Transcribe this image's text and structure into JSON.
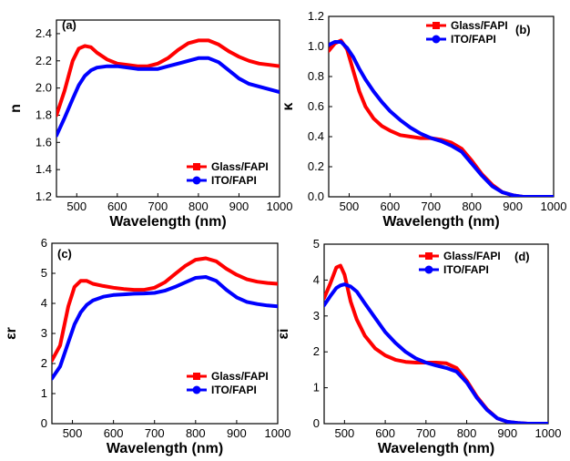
{
  "chart_data": [
    {
      "type": "line",
      "panel_label": "(a)",
      "xlabel": "Wavelength (nm)",
      "ylabel": "n",
      "xlim": [
        450,
        1000
      ],
      "ylim": [
        1.2,
        2.5
      ],
      "xticks": [
        500,
        600,
        700,
        800,
        900,
        1000
      ],
      "yticks": [
        1.2,
        1.4,
        1.6,
        1.8,
        2.0,
        2.2,
        2.4
      ],
      "ytick_labels": [
        "1.2",
        "1.4",
        "1.6",
        "1.8",
        "2.0",
        "2.2",
        "2.4"
      ],
      "legend_position": "bottom-right",
      "x": [
        450,
        470,
        490,
        505,
        520,
        535,
        550,
        575,
        600,
        625,
        650,
        675,
        700,
        725,
        750,
        775,
        800,
        825,
        850,
        875,
        900,
        925,
        950,
        975,
        1000
      ],
      "series": [
        {
          "name": "Glass/FAPI",
          "color": "#ff0000",
          "marker": "square",
          "values": [
            1.8,
            1.98,
            2.2,
            2.29,
            2.31,
            2.3,
            2.26,
            2.21,
            2.18,
            2.17,
            2.16,
            2.16,
            2.18,
            2.22,
            2.28,
            2.33,
            2.35,
            2.35,
            2.32,
            2.27,
            2.23,
            2.2,
            2.18,
            2.17,
            2.16
          ]
        },
        {
          "name": "ITO/FAPI",
          "color": "#0000ff",
          "marker": "circle",
          "values": [
            1.65,
            1.78,
            1.92,
            2.02,
            2.09,
            2.13,
            2.15,
            2.16,
            2.16,
            2.15,
            2.14,
            2.14,
            2.14,
            2.16,
            2.18,
            2.2,
            2.22,
            2.22,
            2.19,
            2.13,
            2.07,
            2.03,
            2.01,
            1.99,
            1.97
          ]
        }
      ]
    },
    {
      "type": "line",
      "panel_label": "(b)",
      "xlabel": "Wavelength (nm)",
      "ylabel": "κ",
      "xlim": [
        450,
        1000
      ],
      "ylim": [
        0.0,
        1.2
      ],
      "xticks": [
        500,
        600,
        700,
        800,
        900,
        1000
      ],
      "yticks": [
        0.0,
        0.2,
        0.4,
        0.6,
        0.8,
        1.0,
        1.2
      ],
      "ytick_labels": [
        "0.0",
        "0.2",
        "0.4",
        "0.6",
        "0.8",
        "1.0",
        "1.2"
      ],
      "legend_position": "top-right",
      "x": [
        450,
        465,
        480,
        495,
        510,
        525,
        540,
        560,
        580,
        600,
        625,
        650,
        675,
        700,
        725,
        750,
        775,
        800,
        825,
        850,
        875,
        900,
        925,
        950,
        1000
      ],
      "series": [
        {
          "name": "Glass/FAPI",
          "color": "#ff0000",
          "marker": "square",
          "values": [
            0.97,
            1.02,
            1.04,
            0.98,
            0.84,
            0.7,
            0.6,
            0.52,
            0.47,
            0.44,
            0.41,
            0.4,
            0.39,
            0.39,
            0.38,
            0.36,
            0.32,
            0.24,
            0.15,
            0.08,
            0.03,
            0.01,
            0.0,
            0.0,
            0.0
          ]
        },
        {
          "name": "ITO/FAPI",
          "color": "#0000ff",
          "marker": "circle",
          "values": [
            1.01,
            1.03,
            1.03,
            0.99,
            0.93,
            0.85,
            0.78,
            0.7,
            0.63,
            0.57,
            0.51,
            0.46,
            0.42,
            0.39,
            0.37,
            0.34,
            0.3,
            0.22,
            0.14,
            0.07,
            0.03,
            0.01,
            0.0,
            0.0,
            0.0
          ]
        }
      ]
    },
    {
      "type": "line",
      "panel_label": "(c)",
      "xlabel": "Wavelength (nm)",
      "ylabel": "εr",
      "xlim": [
        450,
        1000
      ],
      "ylim": [
        0,
        6
      ],
      "xticks": [
        500,
        600,
        700,
        800,
        900,
        1000
      ],
      "yticks": [
        0,
        1,
        2,
        3,
        4,
        5,
        6
      ],
      "ytick_labels": [
        "0",
        "1",
        "2",
        "3",
        "4",
        "5",
        "6"
      ],
      "legend_position": "bottom-right",
      "x": [
        450,
        470,
        490,
        505,
        520,
        535,
        550,
        575,
        600,
        625,
        650,
        675,
        700,
        725,
        750,
        775,
        800,
        825,
        850,
        875,
        900,
        925,
        950,
        975,
        1000
      ],
      "series": [
        {
          "name": "Glass/FAPI",
          "color": "#ff0000",
          "marker": "square",
          "values": [
            2.1,
            2.6,
            3.9,
            4.55,
            4.75,
            4.75,
            4.65,
            4.58,
            4.52,
            4.48,
            4.45,
            4.45,
            4.52,
            4.7,
            4.98,
            5.25,
            5.45,
            5.5,
            5.4,
            5.15,
            4.95,
            4.8,
            4.72,
            4.68,
            4.65
          ]
        },
        {
          "name": "ITO/FAPI",
          "color": "#0000ff",
          "marker": "circle",
          "values": [
            1.5,
            1.9,
            2.7,
            3.3,
            3.7,
            3.95,
            4.1,
            4.22,
            4.28,
            4.3,
            4.32,
            4.33,
            4.35,
            4.42,
            4.55,
            4.7,
            4.85,
            4.88,
            4.75,
            4.45,
            4.2,
            4.05,
            3.98,
            3.93,
            3.9
          ]
        }
      ]
    },
    {
      "type": "line",
      "panel_label": "(d)",
      "xlabel": "Wavelength (nm)",
      "ylabel": "εi",
      "xlim": [
        450,
        1000
      ],
      "ylim": [
        0,
        5
      ],
      "xticks": [
        500,
        600,
        700,
        800,
        900,
        1000
      ],
      "yticks": [
        0,
        1,
        2,
        3,
        4,
        5
      ],
      "ytick_labels": [
        "0",
        "1",
        "2",
        "3",
        "4",
        "5"
      ],
      "legend_position": "top-right",
      "x": [
        450,
        465,
        480,
        490,
        500,
        515,
        530,
        550,
        575,
        600,
        625,
        650,
        675,
        700,
        725,
        750,
        775,
        800,
        825,
        850,
        875,
        900,
        925,
        950,
        1000
      ],
      "series": [
        {
          "name": "Glass/FAPI",
          "color": "#ff0000",
          "marker": "square",
          "values": [
            3.5,
            3.9,
            4.35,
            4.4,
            4.15,
            3.4,
            2.9,
            2.45,
            2.1,
            1.9,
            1.78,
            1.72,
            1.7,
            1.7,
            1.7,
            1.68,
            1.55,
            1.2,
            0.75,
            0.4,
            0.15,
            0.05,
            0.02,
            0.0,
            0.0
          ]
        },
        {
          "name": "ITO/FAPI",
          "color": "#0000ff",
          "marker": "circle",
          "values": [
            3.3,
            3.55,
            3.78,
            3.85,
            3.88,
            3.82,
            3.68,
            3.35,
            2.95,
            2.55,
            2.25,
            2.0,
            1.82,
            1.7,
            1.62,
            1.55,
            1.45,
            1.15,
            0.72,
            0.38,
            0.15,
            0.05,
            0.02,
            0.0,
            0.0
          ]
        }
      ]
    }
  ]
}
